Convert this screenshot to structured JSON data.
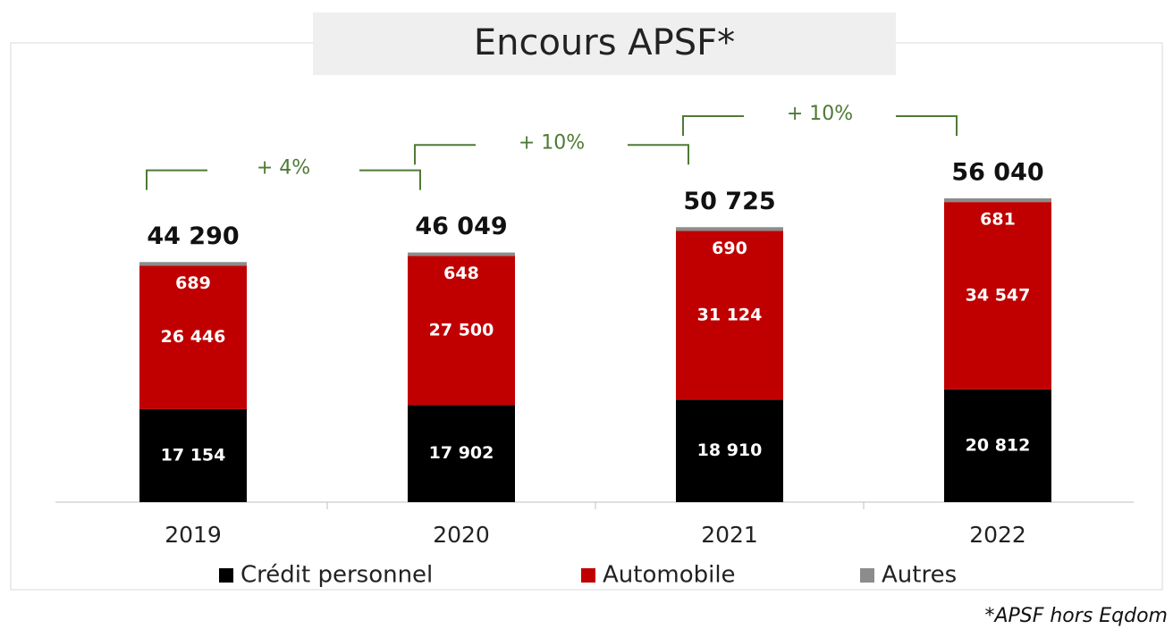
{
  "chart_data": {
    "type": "stacked_bar",
    "title": "Encours APSF*",
    "categories": [
      "2019",
      "2020",
      "2021",
      "2022"
    ],
    "series": [
      {
        "name": "Crédit personnel",
        "color": "#000000",
        "values": [
          17154,
          17902,
          18910,
          20812
        ],
        "value_labels": [
          "17 154",
          "17 902",
          "18 910",
          "20 812"
        ]
      },
      {
        "name": "Automobile",
        "color": "#c00000",
        "values": [
          26446,
          27500,
          31124,
          34547
        ],
        "value_labels": [
          "26 446",
          "27 500",
          "31 124",
          "34 547"
        ]
      },
      {
        "name": "Autres",
        "color": "#8c8c8c",
        "values": [
          689,
          648,
          690,
          681
        ]
      }
    ],
    "totals": [
      44290,
      46049,
      50725,
      56040
    ],
    "total_labels": [
      "44 290",
      "46 049",
      "50 725",
      "56 040"
    ],
    "growth_labels": [
      "+ 4%",
      "+ 10%",
      "+ 10%"
    ],
    "footnote": "*APSF hors Eqdom"
  }
}
